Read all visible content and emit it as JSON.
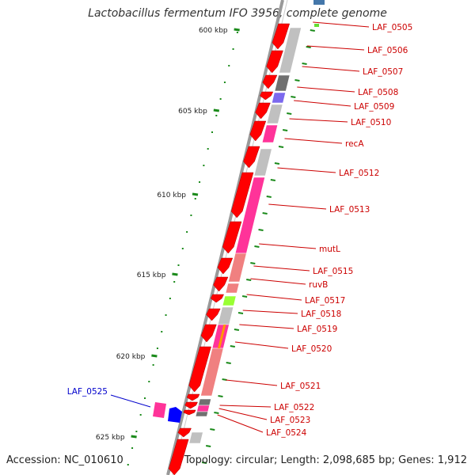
{
  "header": {
    "title": "Lactobacillus fermentum IFO 3956, complete genome"
  },
  "footer": {
    "accession": "Accession: NC_010610",
    "summary": "Topology: circular; Length: 2,098,685 bp; Genes: 1,912"
  },
  "ruler": [
    {
      "label": "600 kbp"
    },
    {
      "label": "605 kbp"
    },
    {
      "label": "610 kbp"
    },
    {
      "label": "615 kbp"
    },
    {
      "label": "620 kbp"
    },
    {
      "label": "625 kbp"
    }
  ],
  "genes_right": [
    {
      "label": "LAF_0505"
    },
    {
      "label": "LAF_0506"
    },
    {
      "label": "LAF_0507"
    },
    {
      "label": "LAF_0508"
    },
    {
      "label": "LAF_0509"
    },
    {
      "label": "LAF_0510"
    },
    {
      "label": "recA"
    },
    {
      "label": "LAF_0512"
    },
    {
      "label": "LAF_0513"
    },
    {
      "label": "mutL"
    },
    {
      "label": "LAF_0515"
    },
    {
      "label": "ruvB"
    },
    {
      "label": "LAF_0517"
    },
    {
      "label": "LAF_0518"
    },
    {
      "label": "LAF_0519"
    },
    {
      "label": "LAF_0520"
    },
    {
      "label": "LAF_0521"
    },
    {
      "label": "LAF_0522"
    },
    {
      "label": "LAF_0523"
    },
    {
      "label": "LAF_0524"
    }
  ],
  "genes_left": [
    {
      "label": "LAF_0525"
    }
  ],
  "colors": {
    "gene_red": "#ff0000",
    "label_red": "#cc0000",
    "label_blue": "#0000cc",
    "tick_green": "#1a8a1a",
    "backbone": "#888888",
    "pink": "#ff3399",
    "salmon": "#f08080",
    "light_grey": "#c0c0c0",
    "dark_grey": "#707070",
    "purple": "#7b68ee",
    "lime": "#99ff33",
    "blue": "#0000ff"
  }
}
